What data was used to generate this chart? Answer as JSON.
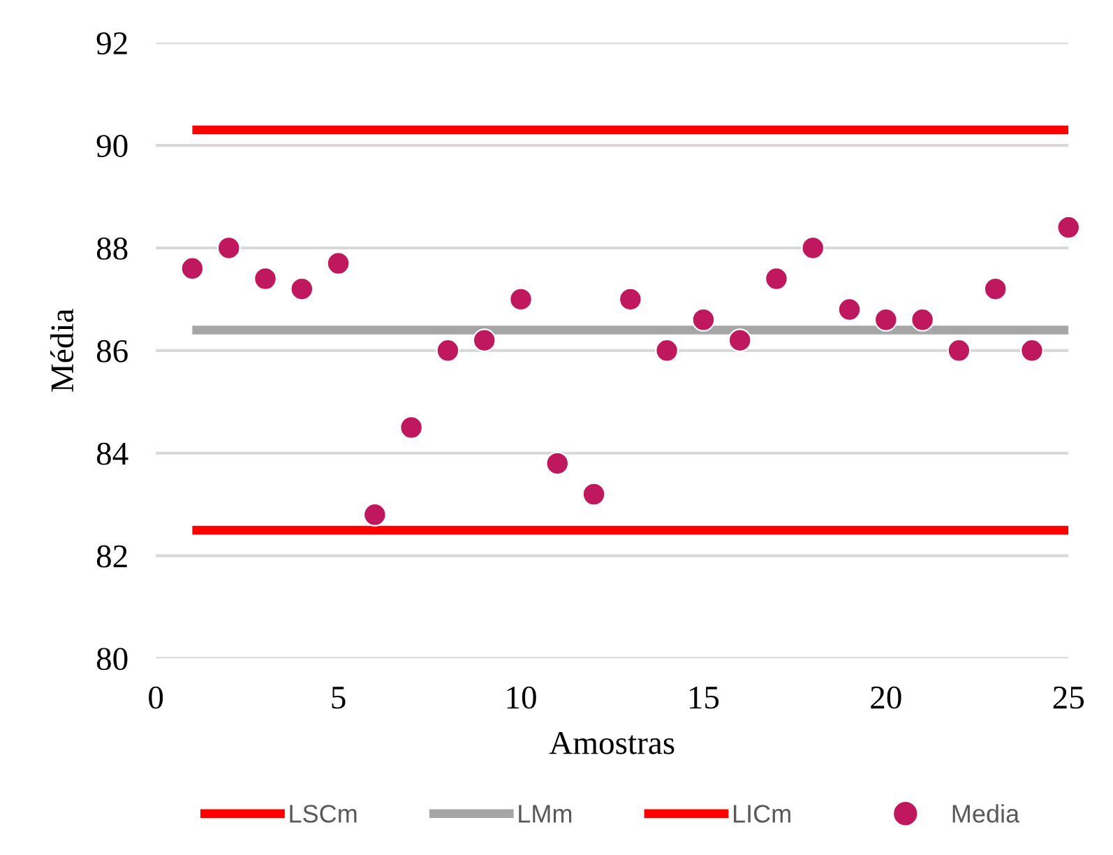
{
  "chart_data": {
    "type": "scatter",
    "xlabel": "Amostras",
    "ylabel": "Média",
    "xlim": [
      0,
      25
    ],
    "xticks": [
      0,
      5,
      10,
      15,
      20,
      25
    ],
    "ylim": [
      80,
      92
    ],
    "yticks": [
      80,
      82,
      84,
      86,
      88,
      90,
      92
    ],
    "grid": "y",
    "legend": "bottom",
    "series": [
      {
        "name": "LSCm",
        "type": "line",
        "color": "#ff0000",
        "x": [
          1,
          25
        ],
        "values": [
          90.3,
          90.3
        ]
      },
      {
        "name": "LMm",
        "type": "line",
        "color": "#a6a6a6",
        "x": [
          1,
          25
        ],
        "values": [
          86.4,
          86.4
        ]
      },
      {
        "name": "LICm",
        "type": "line",
        "color": "#ff0000",
        "x": [
          1,
          25
        ],
        "values": [
          82.5,
          82.5
        ]
      },
      {
        "name": "Media",
        "marker": "circle",
        "color": "#c0185e",
        "x": [
          1,
          2,
          3,
          4,
          5,
          6,
          7,
          8,
          9,
          10,
          11,
          12,
          13,
          14,
          15,
          16,
          17,
          18,
          19,
          20,
          21,
          22,
          23,
          24,
          25
        ],
        "values": [
          87.6,
          88.0,
          87.4,
          87.2,
          87.7,
          82.8,
          84.5,
          86.0,
          86.2,
          87.0,
          83.8,
          83.2,
          87.0,
          86.0,
          86.6,
          86.2,
          87.4,
          88.0,
          86.8,
          86.6,
          86.6,
          86.0,
          87.2,
          86.0,
          88.4
        ]
      }
    ]
  }
}
